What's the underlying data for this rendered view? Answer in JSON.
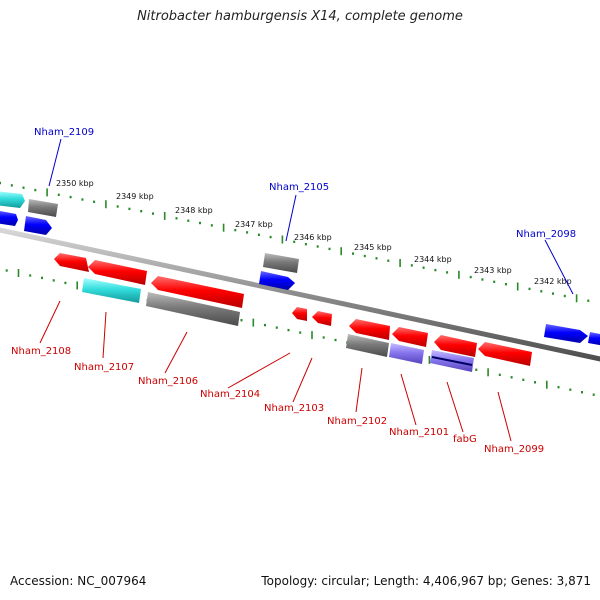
{
  "title": "Nitrobacter hamburgensis X14, complete genome",
  "footer": {
    "accession": "Accession: NC_007964",
    "summary": "Topology: circular; Length: 4,406,967 bp; Genes: 3,871"
  },
  "colors": {
    "forward_label": "#0000cc",
    "reverse_label": "#cc0000",
    "tick": "#2a8a2a",
    "axis": "#8c8c8c",
    "red_feature": "#ff0000",
    "grey_feature": "#777777",
    "blue_feature": "#0000ff",
    "cyan_feature": "#33dddd",
    "purple_feature": "#8877ee"
  },
  "scale": {
    "kbp_labels": [
      "2350 kbp",
      "2349 kbp",
      "2348 kbp",
      "2347 kbp",
      "2346 kbp",
      "2345 kbp",
      "2344 kbp",
      "2343 kbp",
      "2342 kbp"
    ]
  },
  "forward_labels": [
    "Nham_2109",
    "Nham_2105",
    "Nham_2098"
  ],
  "reverse_labels": [
    "Nham_2108",
    "Nham_2107",
    "Nham_2106",
    "Nham_2104",
    "Nham_2103",
    "Nham_2102",
    "Nham_2101",
    "fabG",
    "Nham_2099"
  ]
}
